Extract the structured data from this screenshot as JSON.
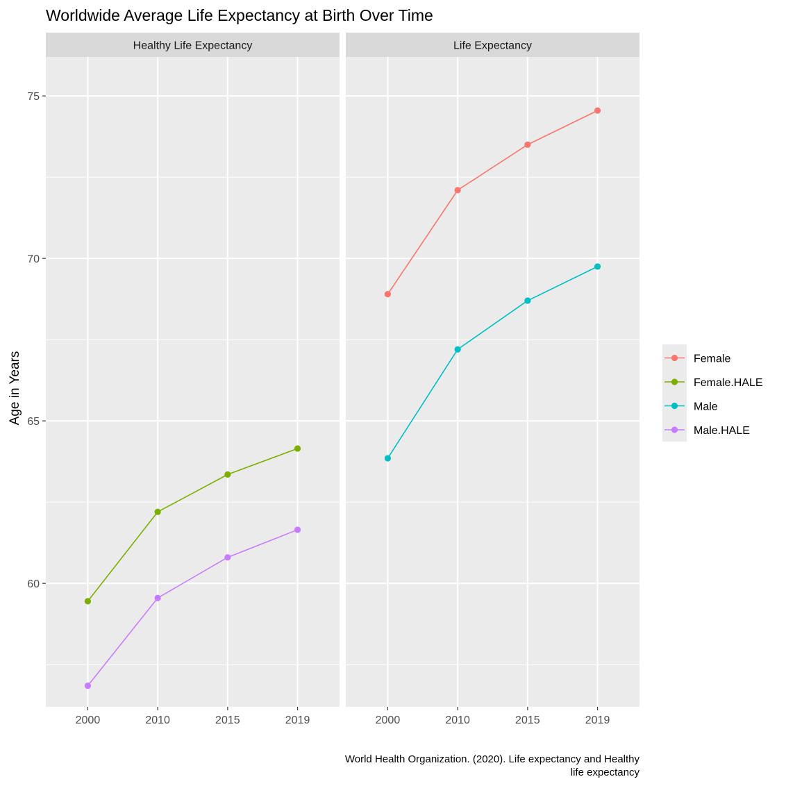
{
  "chart_data": {
    "type": "line",
    "title": "Worldwide Average Life Expectancy at Birth Over Time",
    "ylabel": "Age in Years",
    "xlabel": "",
    "caption_lines": [
      "World Health Organization. (2020). Life expectancy and Healthy",
      "life expectancy"
    ],
    "ylim": [
      56.2,
      76.2
    ],
    "y_ticks": [
      60,
      65,
      70,
      75
    ],
    "x_categories": [
      "2000",
      "2010",
      "2015",
      "2019"
    ],
    "grid": true,
    "legend_position": "right",
    "panels": [
      {
        "label": "Healthy Life Expectancy",
        "series": [
          {
            "name": "Female.HALE",
            "color": "#7CAE00",
            "values": [
              59.45,
              62.2,
              63.35,
              64.15
            ]
          },
          {
            "name": "Male.HALE",
            "color": "#C77CFF",
            "values": [
              56.85,
              59.55,
              60.8,
              61.65
            ]
          }
        ]
      },
      {
        "label": "Life Expectancy",
        "series": [
          {
            "name": "Female",
            "color": "#F8766D",
            "values": [
              68.9,
              72.1,
              73.5,
              74.55
            ]
          },
          {
            "name": "Male",
            "color": "#00BFC4",
            "values": [
              63.85,
              67.2,
              68.7,
              69.75
            ]
          }
        ]
      }
    ],
    "legend": [
      {
        "name": "Female",
        "color": "#F8766D"
      },
      {
        "name": "Female.HALE",
        "color": "#7CAE00"
      },
      {
        "name": "Male",
        "color": "#00BFC4"
      },
      {
        "name": "Male.HALE",
        "color": "#C77CFF"
      }
    ]
  }
}
